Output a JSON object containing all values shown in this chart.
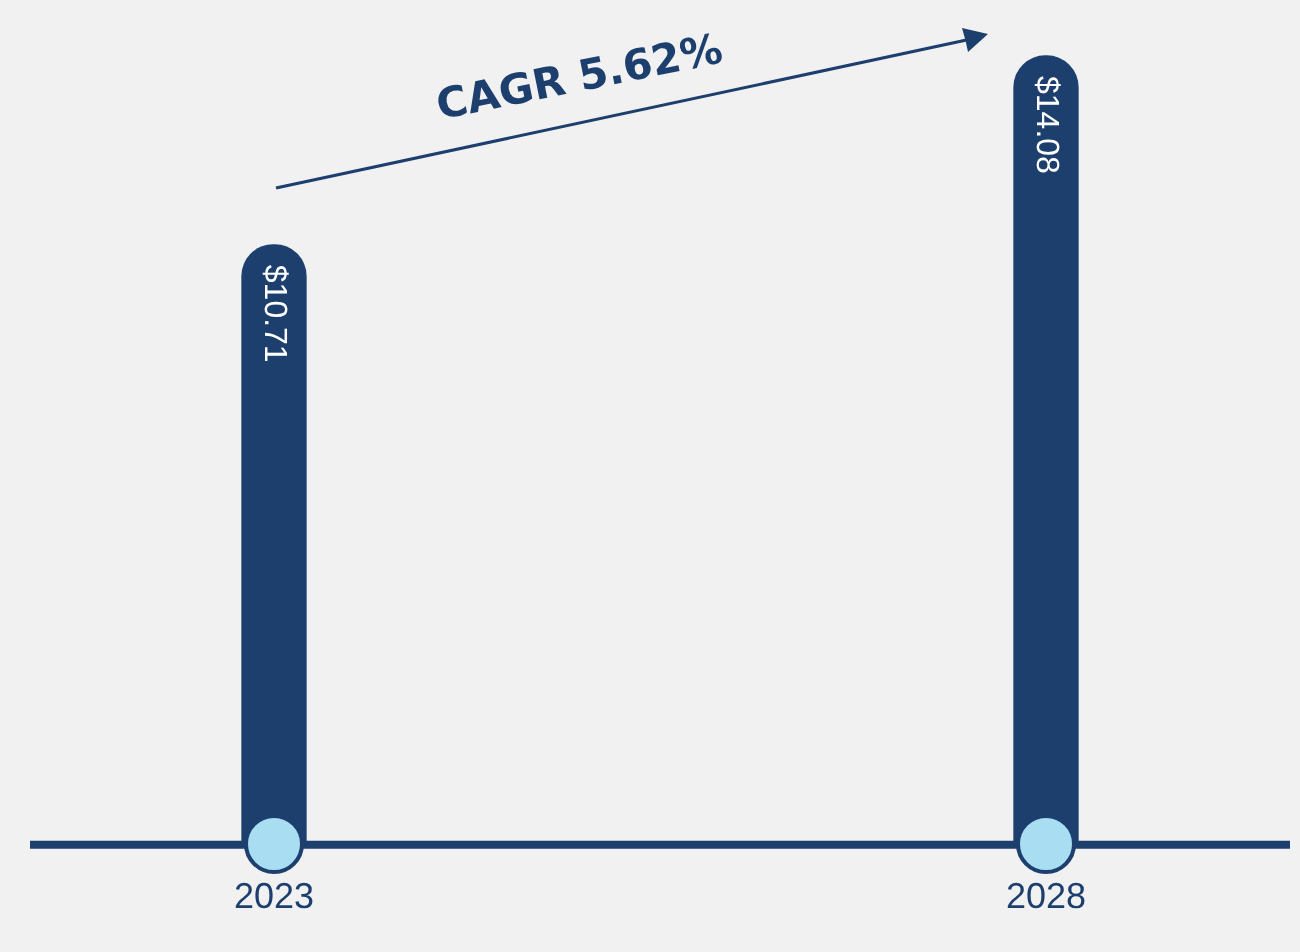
{
  "chart_data": {
    "type": "bar",
    "categories": [
      "2023",
      "2028"
    ],
    "values": [
      10.71,
      14.08
    ],
    "color": "#1d3f6e",
    "value_labels": [
      "$10.71",
      "$14.08"
    ],
    "grid": false,
    "legend": false,
    "annotations": [
      "CAGR 5.62%"
    ]
  }
}
